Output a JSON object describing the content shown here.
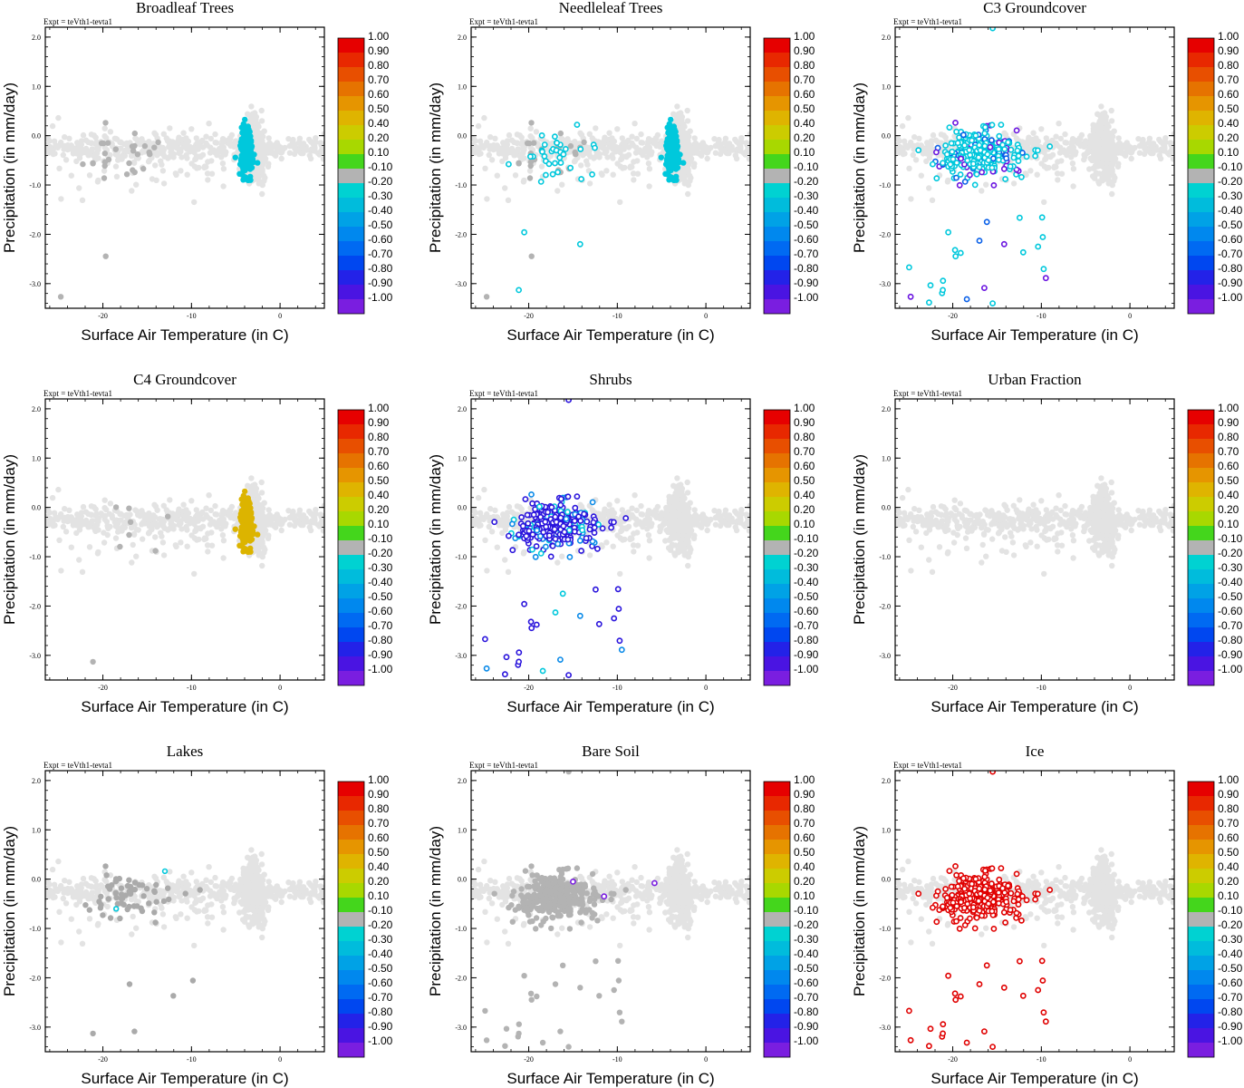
{
  "figure": {
    "experiment_label": "Expt = teVth1-tevta1",
    "colors": {
      "background_points": "#e3e3e3"
    }
  },
  "chart_data": {
    "type": "scatter",
    "xlabel": "Surface Air Temperature (in C)",
    "ylabel": "Precipitation (in mm/day)",
    "xlim": [
      -26.5,
      5
    ],
    "ylim": [
      -3.5,
      2.2
    ],
    "xticks": [
      -20,
      -10,
      0
    ],
    "xtick_labels": [
      "-20",
      "-10",
      "0"
    ],
    "yticks": [
      2,
      1,
      0,
      -1,
      -2,
      -3
    ],
    "ytick_labels": [
      "2.0",
      "1.0",
      "0.0",
      "-1.0",
      "-2.0",
      "-3.0"
    ],
    "colorbar": {
      "labels": [
        "1.00",
        "0.90",
        "0.80",
        "0.70",
        "0.60",
        "0.50",
        "0.40",
        "0.20",
        "0.10",
        "-0.10",
        "-0.20",
        "-0.30",
        "-0.40",
        "-0.50",
        "-0.60",
        "-0.70",
        "-0.80",
        "-0.90",
        "-1.00"
      ],
      "colors": [
        "#e60000",
        "#e82800",
        "#e84f00",
        "#e67300",
        "#e69500",
        "#dfb400",
        "#cccc00",
        "#a8d800",
        "#44d61c",
        "#b3b3b3",
        "#00d2d2",
        "#00bcdc",
        "#00a2e6",
        "#0088ee",
        "#006af2",
        "#0047f0",
        "#2322e8",
        "#4a14e2",
        "#7a1ee0"
      ]
    },
    "panels": [
      {
        "title": "Broadleaf Trees",
        "pattern": "warm_cluster",
        "color": "#00c8dc",
        "gray_source": "cold"
      },
      {
        "title": "Needleleaf Trees",
        "pattern": "warm_cluster",
        "color": "#00c8dc",
        "gray_source": "cold",
        "extra_source": "cold",
        "extra_colors": [
          "#00c8dc",
          "#0a50e6",
          "#1a2ae0"
        ]
      },
      {
        "title": "C3 Groundcover",
        "pattern": "cold_spread",
        "color": "#00c8dc",
        "extra_colors": [
          "#0a60e8",
          "#6a14e0"
        ]
      },
      {
        "title": "C4 Groundcover",
        "pattern": "warm_cluster",
        "color": "#dcb400",
        "gray_source": "cold_few"
      },
      {
        "title": "Shrubs",
        "pattern": "cold_spread",
        "color": "#2a14dc",
        "extra_colors": [
          "#00c8dc",
          "#0a8ae8"
        ]
      },
      {
        "title": "Urban Fraction",
        "pattern": "background_only"
      },
      {
        "title": "Lakes",
        "pattern": "cold_gray",
        "color": "#aaaaaa",
        "extra_colors": [
          "#00c8dc"
        ]
      },
      {
        "title": "Bare Soil",
        "pattern": "cold_gray_dense",
        "color": "#b3b3b3",
        "extra_colors": [
          "#7a1ee0"
        ]
      },
      {
        "title": "Ice",
        "pattern": "cold_spread",
        "color": "#e00000"
      }
    ]
  }
}
